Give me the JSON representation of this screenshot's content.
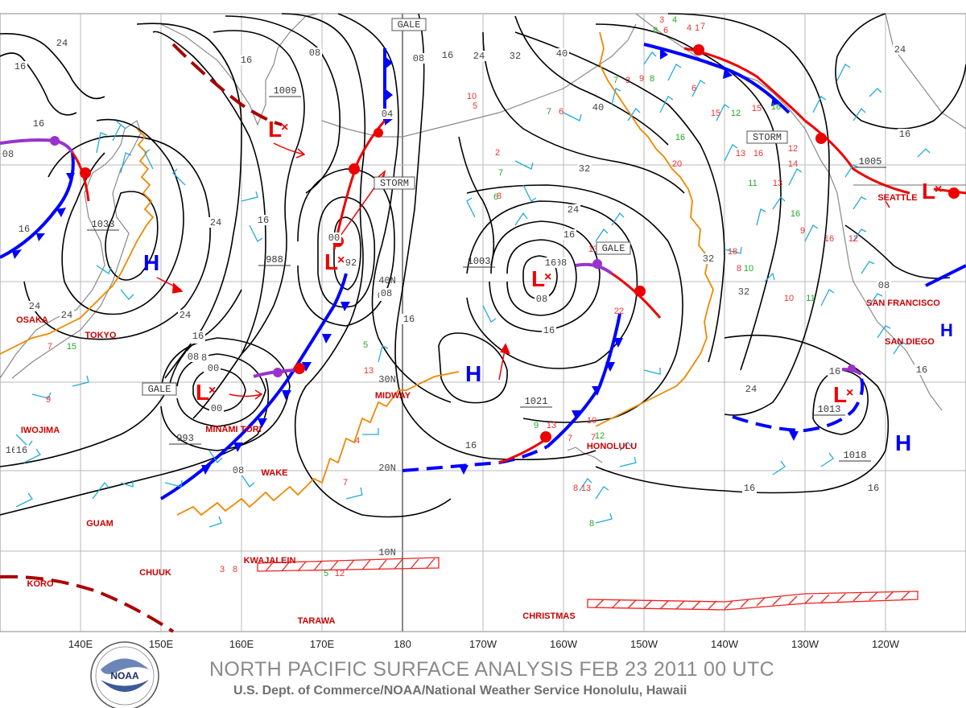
{
  "title": "NORTH PACIFIC SURFACE ANALYSIS FEB 23 2011 00 UTC",
  "subtitle": "U.S. Dept. of Commerce/NOAA/National Weather Service Honolulu, Hawaii",
  "logo_text": "NOAA",
  "longitude_labels": [
    "140E",
    "150E",
    "160E",
    "170E",
    "180",
    "170W",
    "160W",
    "150W",
    "140W",
    "130W",
    "120W"
  ],
  "latitude_labels": [
    "40N",
    "30N",
    "20N",
    "10N"
  ],
  "isobar_labels": [
    "24",
    "16",
    "08",
    "16",
    "24",
    "08",
    "16",
    "00",
    "08",
    "04",
    "08",
    "16",
    "24",
    "32",
    "40",
    "24",
    "32",
    "40",
    "16",
    "24",
    "16",
    "08",
    "00",
    "08",
    "16",
    "24",
    "32",
    "16",
    "08",
    "16",
    "32",
    "24",
    "08",
    "16",
    "16",
    "16",
    "16",
    "08",
    "08",
    "00",
    "00",
    "92",
    "08",
    "16",
    "16",
    "08",
    "16",
    "24",
    "24",
    "16",
    "16",
    "16",
    "16"
  ],
  "pressure_boxes": [
    "1009",
    "1033",
    "988",
    "1003",
    "1021",
    "993",
    "1013",
    "1018",
    "1005"
  ],
  "warnings": [
    "GALE",
    "STORM",
    "GALE",
    "GALE",
    "STORM"
  ],
  "cities": [
    "OSAKA",
    "TOKYO",
    "IWOJIMA",
    "GUAM",
    "CHUUK",
    "KORO",
    "KWAJALEIN",
    "TARAWA",
    "WAKE",
    "MINAMI TORI",
    "MIDWAY",
    "HONOLULU",
    "CHRISTMAS",
    "SEATTLE",
    "SAN FRANCISCO",
    "SAN DIEGO"
  ],
  "centers": [
    {
      "type": "L",
      "name": "low-1009"
    },
    {
      "type": "H",
      "name": "high-1033"
    },
    {
      "type": "L",
      "name": "low-988"
    },
    {
      "type": "L",
      "name": "low-1003"
    },
    {
      "type": "H",
      "name": "high-1021"
    },
    {
      "type": "L",
      "name": "low-993"
    },
    {
      "type": "L",
      "name": "low-1013"
    },
    {
      "type": "H",
      "name": "high-1018"
    },
    {
      "type": "L",
      "name": "low-1005"
    }
  ],
  "colors": {
    "isobar": "#000000",
    "cold_front": "#0000ff",
    "warm_front": "#ee0000",
    "occluded_front": "#9933cc",
    "trough": "#ee8800",
    "wind_barb": "#22aadd",
    "station_red": "#ee3333",
    "station_green": "#22aa22",
    "land": "#888888",
    "grid": "#777777"
  },
  "station_numbers": [
    "3",
    "4",
    "4",
    "7",
    "8",
    "6",
    "1",
    "7",
    "3",
    "9",
    "8",
    "5",
    "10",
    "7",
    "6",
    "2",
    "7",
    "8",
    "6",
    "16",
    "20",
    "15",
    "12",
    "13",
    "16",
    "11",
    "13",
    "15",
    "12",
    "18",
    "8",
    "10",
    "9",
    "10",
    "11",
    "13",
    "22",
    "16",
    "12",
    "14",
    "16",
    "10",
    "7",
    "6",
    "4",
    "7",
    "9",
    "13",
    "7",
    "12",
    "8",
    "13",
    "8",
    "3",
    "8",
    "5",
    "12",
    "13",
    "5",
    "9",
    "7",
    "15",
    "16",
    "12"
  ]
}
